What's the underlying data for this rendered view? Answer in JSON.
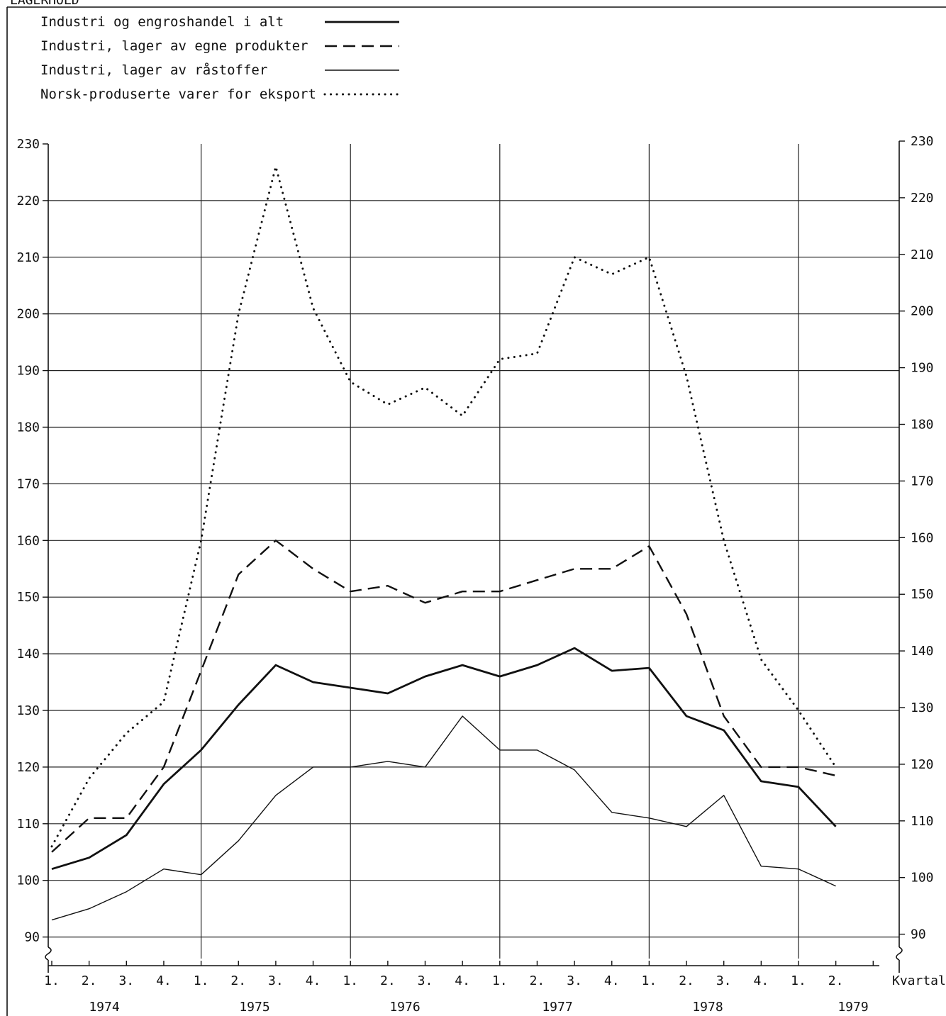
{
  "chart_data": {
    "type": "line",
    "title": "",
    "top_clipped_label": "LAGERHOLD",
    "xlabel": "Kvartal",
    "ylabel": "",
    "ylim": [
      85,
      230
    ],
    "yticks": [
      90,
      100,
      110,
      120,
      130,
      140,
      150,
      160,
      170,
      180,
      190,
      200,
      210,
      220,
      230
    ],
    "y_axis_break": "yes",
    "grid": "major horizontal and yearly vertical",
    "legend_position": "top-left",
    "quarter_labels": [
      "1.",
      "2.",
      "3.",
      "4.",
      "1.",
      "2.",
      "3.",
      "4.",
      "1.",
      "2.",
      "3.",
      "4.",
      "1.",
      "2.",
      "3.",
      "4.",
      "1.",
      "2.",
      "3.",
      "4.",
      "1.",
      "2."
    ],
    "years": [
      "1974",
      "1975",
      "1976",
      "1977",
      "1978",
      "1979"
    ],
    "series": [
      {
        "name": "Industri og engroshandel i alt",
        "style": "solid-thick",
        "values": [
          102,
          104,
          108,
          117,
          123,
          131,
          138,
          135,
          134,
          133,
          136,
          138,
          136,
          138,
          141,
          137,
          137.5,
          129,
          126.5,
          117.5,
          116.5,
          109.5
        ]
      },
      {
        "name": "Industri, lager av egne produkter",
        "style": "dashed",
        "values": [
          105,
          111,
          111,
          120,
          137,
          154,
          160,
          155,
          151,
          152,
          149,
          151,
          151,
          153,
          155,
          155,
          159,
          147,
          129,
          120,
          120,
          118.5
        ]
      },
      {
        "name": "Industri, lager av råstoffer",
        "style": "solid-thin",
        "values": [
          93,
          95,
          98,
          102,
          101,
          107,
          115,
          120,
          120,
          121,
          120,
          129,
          123,
          123,
          119.5,
          112,
          111,
          109.5,
          115,
          102.5,
          102,
          99
        ]
      },
      {
        "name": "Norsk-produserte varer for eksport",
        "style": "dotted",
        "values": [
          106,
          118,
          126,
          131.5,
          160,
          200,
          226,
          201,
          188,
          184,
          187,
          182,
          192,
          193,
          210,
          207,
          210,
          189,
          160,
          139,
          130,
          120
        ]
      }
    ]
  }
}
